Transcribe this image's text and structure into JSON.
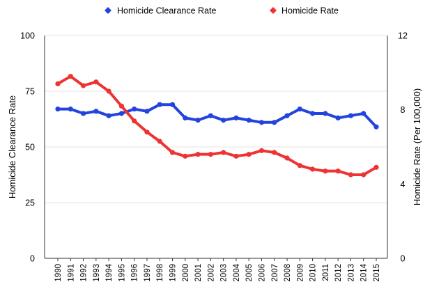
{
  "chart_data": {
    "type": "line",
    "title": "",
    "x": [
      "1990",
      "1991",
      "1992",
      "1993",
      "1994",
      "1995",
      "1996",
      "1997",
      "1998",
      "1999",
      "2000",
      "2001",
      "2002",
      "2003",
      "2004",
      "2005",
      "2006",
      "2007",
      "2008",
      "2009",
      "2010",
      "2011",
      "2012",
      "2013",
      "2014",
      "2015"
    ],
    "series": [
      {
        "name": "Homicide Clearance Rate",
        "axis": "left",
        "color": "#2244dd",
        "values": [
          67,
          67,
          65,
          66,
          64,
          65,
          67,
          66,
          69,
          69,
          63,
          62,
          64,
          62,
          63,
          62,
          61,
          61,
          64,
          67,
          65,
          65,
          63,
          64,
          65,
          59
        ]
      },
      {
        "name": "Homicide Rate",
        "axis": "right",
        "color": "#ee3333",
        "values": [
          9.4,
          9.8,
          9.3,
          9.5,
          9.0,
          8.2,
          7.4,
          6.8,
          6.3,
          5.7,
          5.5,
          5.6,
          5.6,
          5.7,
          5.5,
          5.6,
          5.8,
          5.7,
          5.4,
          5.0,
          4.8,
          4.7,
          4.7,
          4.5,
          4.5,
          4.9
        ]
      }
    ],
    "y_left": {
      "label": "Homicide Clearance Rate",
      "lim": [
        0,
        100
      ],
      "ticks": [
        0,
        25,
        50,
        75,
        100
      ]
    },
    "y_right": {
      "label": "Homicide Rate (Per 100,000)",
      "lim": [
        0,
        12
      ],
      "ticks": [
        0,
        4,
        8,
        12
      ]
    },
    "xlabel": "",
    "grid": true,
    "legend": "top-center"
  }
}
